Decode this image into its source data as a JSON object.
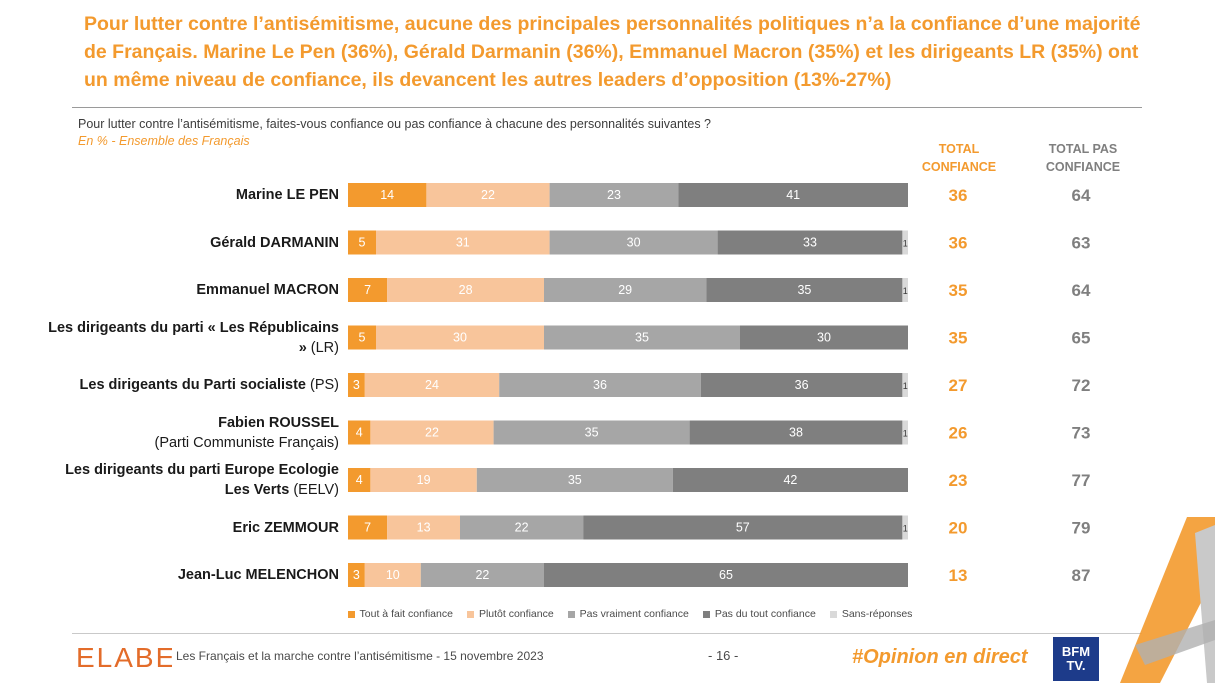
{
  "header": {
    "title": "Pour lutter contre l’antisémitisme, aucune des principales personnalités politiques n’a la confiance d’une majorité de Français. Marine Le Pen (36%), Gérald Darmanin (36%), Emmanuel Macron (35%) et les dirigeants LR (35%) ont un même niveau de confiance, ils devancent les autres leaders d’opposition (13%-27%)",
    "question": "Pour lutter contre l’antisémitisme, faites-vous confiance ou pas confiance à chacune des personnalités suivantes ?",
    "base": "En % - Ensemble des Français",
    "total_confiance_line1": "TOTAL",
    "total_confiance_line2": "CONFIANCE",
    "total_pas_line1": "TOTAL PAS",
    "total_pas_line2": "CONFIANCE"
  },
  "chart_data": {
    "type": "bar",
    "orientation": "horizontal",
    "stacked": true,
    "xlim": [
      0,
      100
    ],
    "categories": [
      {
        "bold": "Marine LE PEN",
        "normal": ""
      },
      {
        "bold": "Gérald DARMANIN",
        "normal": ""
      },
      {
        "bold": "Emmanuel MACRON",
        "normal": ""
      },
      {
        "bold": "Les dirigeants du parti « Les Républicains »",
        "normal": " (LR)"
      },
      {
        "bold": "Les dirigeants du Parti socialiste",
        "normal": " (PS)"
      },
      {
        "bold": "Fabien ROUSSEL",
        "normal": "(Parti Communiste Français)"
      },
      {
        "bold": "Les dirigeants du parti Europe Ecologie Les Verts",
        "normal": " (EELV)"
      },
      {
        "bold": "Eric ZEMMOUR",
        "normal": ""
      },
      {
        "bold": "Jean-Luc MELENCHON",
        "normal": ""
      }
    ],
    "series": [
      {
        "name": "Tout à fait confiance",
        "color": "#f39a2e",
        "label_color": "#ffffff",
        "values": [
          14,
          5,
          7,
          5,
          3,
          4,
          4,
          7,
          3
        ]
      },
      {
        "name": "Plutôt confiance",
        "color": "#f8c59b",
        "label_color": "#ffffff",
        "values": [
          22,
          31,
          28,
          30,
          24,
          22,
          19,
          13,
          10
        ]
      },
      {
        "name": "Pas vraiment confiance",
        "color": "#a6a6a6",
        "label_color": "#ffffff",
        "values": [
          23,
          30,
          29,
          35,
          36,
          35,
          35,
          22,
          22
        ]
      },
      {
        "name": "Pas du tout confiance",
        "color": "#7f7f7f",
        "label_color": "#ffffff",
        "values": [
          41,
          33,
          35,
          30,
          36,
          38,
          42,
          57,
          65
        ]
      },
      {
        "name": "Sans-réponses",
        "color": "#d9d9d9",
        "label_color": "#3a3a3a",
        "values": [
          0,
          1,
          1,
          0,
          1,
          1,
          0,
          1,
          0
        ]
      }
    ],
    "total_confiance": [
      36,
      36,
      35,
      35,
      27,
      26,
      23,
      20,
      13
    ],
    "total_pas_confiance": [
      64,
      63,
      64,
      65,
      72,
      73,
      77,
      79,
      87
    ],
    "total_confiance_color": "#f39a2e",
    "total_pas_color": "#7f7f7f"
  },
  "footer": {
    "logo_text": "ELABE",
    "source": "Les Français et la marche contre l’antisémitisme - 15 novembre 2023",
    "page": "- 16 -",
    "hashtag": "#Opinion en direct",
    "bfm_line1": "BFM",
    "bfm_line2": "TV."
  }
}
